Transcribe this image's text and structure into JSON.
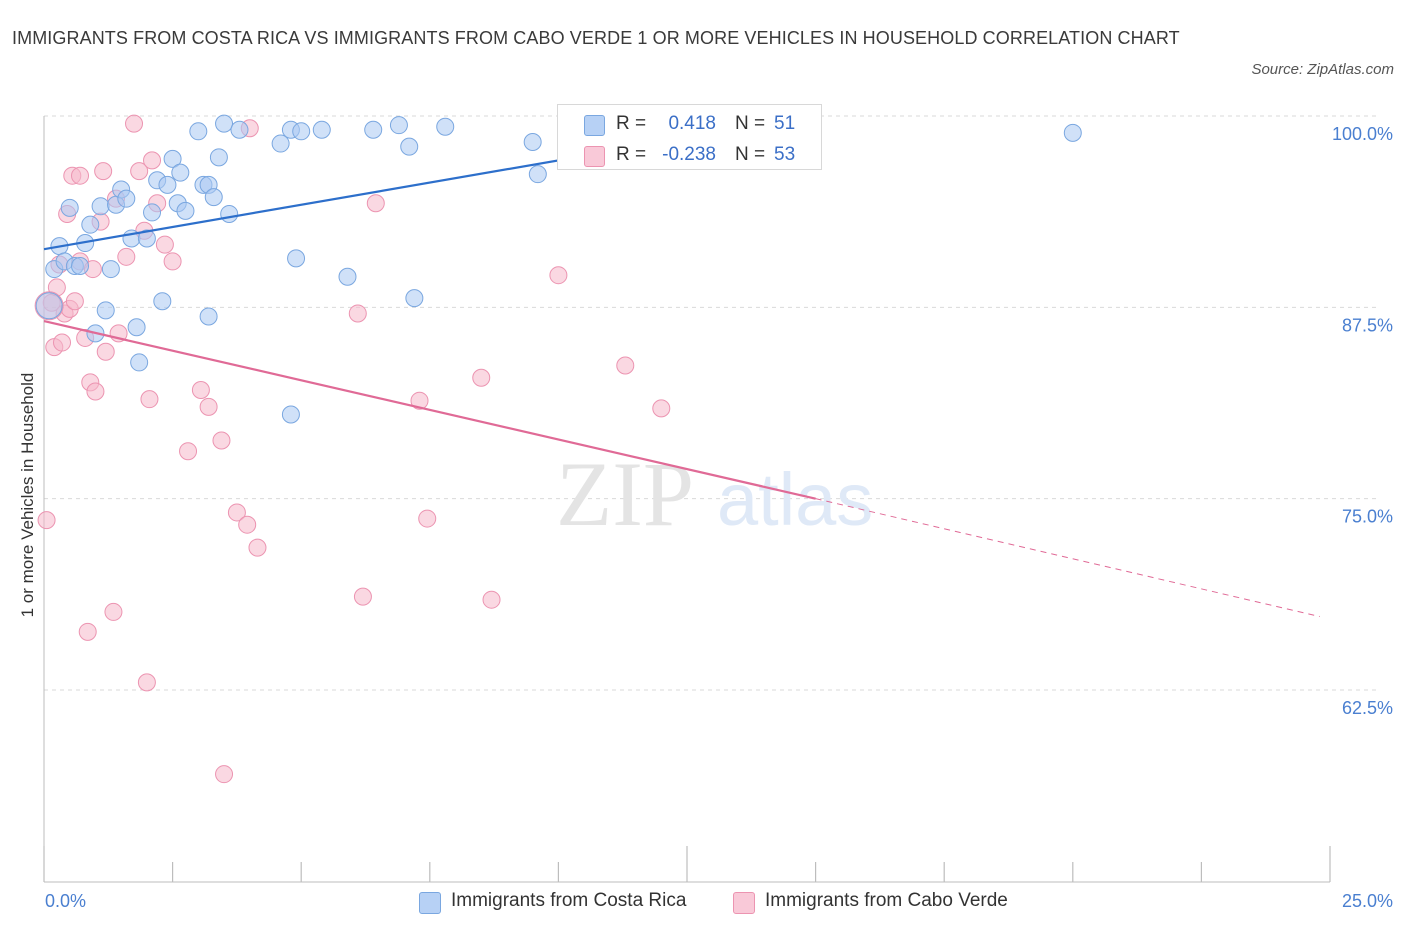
{
  "title": "IMMIGRANTS FROM COSTA RICA VS IMMIGRANTS FROM CABO VERDE 1 OR MORE VEHICLES IN HOUSEHOLD CORRELATION CHART",
  "source": "Source: ZipAtlas.com",
  "watermark": {
    "zip": "ZIP",
    "atlas": "atlas"
  },
  "legend": {
    "rows": [
      {
        "r_label": "R =",
        "r_value": "0.418",
        "n_label": "N =",
        "n_value": "51"
      },
      {
        "r_label": "R =",
        "r_value": "-0.238",
        "n_label": "N =",
        "n_value": "53"
      }
    ]
  },
  "colors": {
    "blue_fill": "#a9c8f2",
    "blue_stroke": "#7aa7e0",
    "blue_line": "#2d6fcb",
    "pink_fill": "#f6b8cb",
    "pink_stroke": "#ec94b1",
    "pink_line": "#e06a96",
    "tick_text": "#4a7fd0",
    "grid": "#d9d9d9"
  },
  "chart_data": {
    "type": "scatter",
    "title": "IMMIGRANTS FROM COSTA RICA VS IMMIGRANTS FROM CABO VERDE 1 OR MORE VEHICLES IN HOUSEHOLD CORRELATION CHART",
    "xlabel": "",
    "ylabel": "1 or more Vehicles in Household",
    "xlim": [
      0,
      25
    ],
    "ylim": [
      50,
      100
    ],
    "x_tick_labels": [
      "0.0%",
      "25.0%"
    ],
    "y_tick_values": [
      100,
      87.5,
      75,
      62.5
    ],
    "y_tick_labels": [
      "100.0%",
      "87.5%",
      "75.0%",
      "62.5%"
    ],
    "grid": true,
    "legend_position": "top-center",
    "series": [
      {
        "name": "Immigrants from Costa Rica",
        "color": "#a9c8f2",
        "r": 0.418,
        "n": 51,
        "trend": {
          "x": [
            0,
            15.0
          ],
          "y": [
            91.3,
            100.0
          ]
        },
        "points": [
          [
            0.2,
            90.0
          ],
          [
            0.3,
            91.5
          ],
          [
            0.4,
            90.5
          ],
          [
            0.5,
            94.0
          ],
          [
            0.6,
            90.2
          ],
          [
            0.7,
            90.2
          ],
          [
            0.8,
            91.7
          ],
          [
            0.9,
            92.9
          ],
          [
            1.0,
            85.8
          ],
          [
            1.1,
            94.1
          ],
          [
            1.2,
            87.3
          ],
          [
            1.3,
            90.0
          ],
          [
            1.4,
            94.2
          ],
          [
            1.5,
            95.2
          ],
          [
            1.6,
            94.6
          ],
          [
            1.7,
            92.0
          ],
          [
            1.8,
            86.2
          ],
          [
            1.85,
            83.9
          ],
          [
            2.0,
            92.0
          ],
          [
            2.1,
            93.7
          ],
          [
            2.2,
            95.8
          ],
          [
            2.3,
            87.9
          ],
          [
            2.4,
            95.5
          ],
          [
            2.5,
            97.2
          ],
          [
            2.6,
            94.3
          ],
          [
            2.65,
            96.3
          ],
          [
            2.75,
            93.8
          ],
          [
            3.0,
            99.0
          ],
          [
            3.1,
            95.5
          ],
          [
            3.2,
            86.9
          ],
          [
            3.2,
            95.5
          ],
          [
            3.3,
            94.7
          ],
          [
            3.4,
            97.3
          ],
          [
            3.5,
            99.5
          ],
          [
            3.6,
            93.6
          ],
          [
            3.8,
            99.1
          ],
          [
            4.6,
            98.2
          ],
          [
            4.8,
            99.1
          ],
          [
            4.8,
            80.5
          ],
          [
            4.9,
            90.7
          ],
          [
            5.0,
            99.0
          ],
          [
            5.4,
            99.1
          ],
          [
            5.9,
            89.5
          ],
          [
            6.4,
            99.1
          ],
          [
            6.9,
            99.4
          ],
          [
            7.1,
            98.0
          ],
          [
            7.2,
            88.1
          ],
          [
            7.8,
            99.3
          ],
          [
            9.5,
            98.3
          ],
          [
            9.6,
            96.2
          ],
          [
            20.0,
            98.9
          ]
        ]
      },
      {
        "name": "Immigrants from Cabo Verde",
        "color": "#f6b8cb",
        "r": -0.238,
        "n": 53,
        "trend": {
          "x": [
            0,
            15.0
          ],
          "y": [
            86.6,
            75.0
          ]
        },
        "trend_dashed_extension": {
          "x": [
            15.0,
            24.8
          ],
          "y": [
            75.0,
            67.3
          ]
        },
        "points": [
          [
            0.05,
            73.6
          ],
          [
            0.15,
            87.8
          ],
          [
            0.2,
            84.9
          ],
          [
            0.25,
            88.8
          ],
          [
            0.3,
            90.3
          ],
          [
            0.35,
            85.2
          ],
          [
            0.4,
            87.1
          ],
          [
            0.45,
            93.6
          ],
          [
            0.5,
            87.4
          ],
          [
            0.55,
            96.1
          ],
          [
            0.6,
            87.9
          ],
          [
            0.7,
            90.5
          ],
          [
            0.7,
            96.1
          ],
          [
            0.8,
            85.5
          ],
          [
            0.85,
            66.3
          ],
          [
            0.9,
            82.6
          ],
          [
            0.95,
            90.0
          ],
          [
            1.0,
            82.0
          ],
          [
            1.1,
            93.1
          ],
          [
            1.15,
            96.4
          ],
          [
            1.2,
            84.6
          ],
          [
            1.35,
            67.6
          ],
          [
            1.4,
            94.6
          ],
          [
            1.45,
            85.8
          ],
          [
            1.6,
            90.8
          ],
          [
            1.75,
            99.5
          ],
          [
            1.85,
            96.4
          ],
          [
            1.95,
            92.5
          ],
          [
            2.0,
            63.0
          ],
          [
            2.05,
            81.5
          ],
          [
            2.1,
            97.1
          ],
          [
            2.2,
            94.3
          ],
          [
            2.35,
            91.6
          ],
          [
            2.5,
            90.5
          ],
          [
            2.8,
            78.1
          ],
          [
            3.05,
            82.1
          ],
          [
            3.2,
            81.0
          ],
          [
            3.45,
            78.8
          ],
          [
            3.5,
            57.0
          ],
          [
            3.75,
            74.1
          ],
          [
            3.95,
            73.3
          ],
          [
            4.0,
            99.2
          ],
          [
            4.15,
            71.8
          ],
          [
            6.1,
            87.1
          ],
          [
            6.2,
            68.6
          ],
          [
            6.45,
            94.3
          ],
          [
            7.3,
            81.4
          ],
          [
            7.45,
            73.7
          ],
          [
            8.5,
            82.9
          ],
          [
            8.7,
            68.4
          ],
          [
            10.0,
            89.6
          ],
          [
            11.3,
            83.7
          ],
          [
            12.0,
            80.9
          ]
        ]
      }
    ]
  },
  "bottom_legend": {
    "items": [
      "Immigrants from Costa Rica",
      "Immigrants from Cabo Verde"
    ]
  }
}
